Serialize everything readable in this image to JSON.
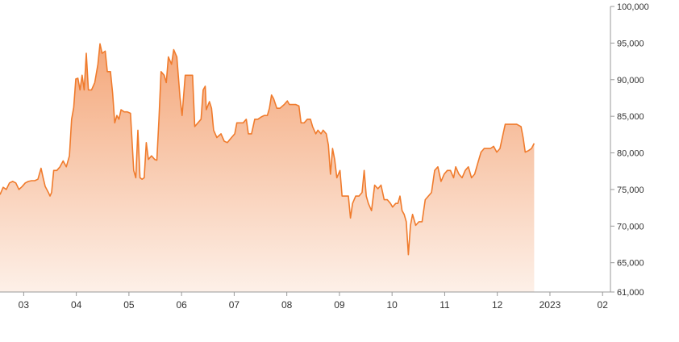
{
  "chart_data": {
    "type": "area",
    "title": "",
    "xlabel": "",
    "ylabel": "",
    "ylim": [
      61000,
      100000
    ],
    "y_ticks": [
      61000,
      65000,
      70000,
      75000,
      80000,
      85000,
      90000,
      95000,
      100000
    ],
    "y_tick_labels": [
      "61,000",
      "65,000",
      "70,000",
      "75,000",
      "80,000",
      "85,000",
      "90,000",
      "95,000",
      "100,000"
    ],
    "x_ticks": [
      {
        "label": "03",
        "x": 0.45
      },
      {
        "label": "04",
        "x": 1.45
      },
      {
        "label": "05",
        "x": 2.45
      },
      {
        "label": "06",
        "x": 3.45
      },
      {
        "label": "07",
        "x": 4.45
      },
      {
        "label": "08",
        "x": 5.45
      },
      {
        "label": "09",
        "x": 6.45
      },
      {
        "label": "10",
        "x": 7.45
      },
      {
        "label": "11",
        "x": 8.45
      },
      {
        "label": "12",
        "x": 9.45
      },
      {
        "label": "2023",
        "x": 10.45
      },
      {
        "label": "02",
        "x": 11.45
      }
    ],
    "x_domain": [
      0,
      11.6
    ],
    "y_axis_position": "right",
    "grid": false,
    "colors": {
      "line": "#f07b2c",
      "fill_top": "#f4a77a",
      "fill_bottom": "#fdf0e8",
      "axis": "#999999",
      "text": "#333333"
    },
    "series": [
      {
        "values": [
          [
            0.0,
            74300
          ],
          [
            0.06,
            75300
          ],
          [
            0.12,
            75000
          ],
          [
            0.18,
            75900
          ],
          [
            0.24,
            76100
          ],
          [
            0.3,
            75900
          ],
          [
            0.36,
            75000
          ],
          [
            0.42,
            75400
          ],
          [
            0.48,
            75900
          ],
          [
            0.54,
            76100
          ],
          [
            0.6,
            76200
          ],
          [
            0.66,
            76200
          ],
          [
            0.72,
            76400
          ],
          [
            0.78,
            77900
          ],
          [
            0.82,
            76600
          ],
          [
            0.86,
            75400
          ],
          [
            0.92,
            74600
          ],
          [
            0.95,
            74100
          ],
          [
            0.98,
            74600
          ],
          [
            1.02,
            77600
          ],
          [
            1.08,
            77600
          ],
          [
            1.14,
            78100
          ],
          [
            1.2,
            78900
          ],
          [
            1.26,
            78100
          ],
          [
            1.32,
            79600
          ],
          [
            1.36,
            84600
          ],
          [
            1.4,
            86200
          ],
          [
            1.44,
            90100
          ],
          [
            1.48,
            90200
          ],
          [
            1.52,
            88600
          ],
          [
            1.56,
            90600
          ],
          [
            1.6,
            88600
          ],
          [
            1.64,
            93600
          ],
          [
            1.68,
            88600
          ],
          [
            1.74,
            88600
          ],
          [
            1.8,
            89600
          ],
          [
            1.86,
            92100
          ],
          [
            1.9,
            94900
          ],
          [
            1.94,
            93600
          ],
          [
            2.0,
            93900
          ],
          [
            2.04,
            91100
          ],
          [
            2.1,
            91100
          ],
          [
            2.14,
            88100
          ],
          [
            2.18,
            84100
          ],
          [
            2.22,
            85100
          ],
          [
            2.26,
            84600
          ],
          [
            2.3,
            85900
          ],
          [
            2.36,
            85600
          ],
          [
            2.42,
            85600
          ],
          [
            2.48,
            85400
          ],
          [
            2.54,
            77600
          ],
          [
            2.58,
            76600
          ],
          [
            2.62,
            83100
          ],
          [
            2.66,
            76600
          ],
          [
            2.7,
            76400
          ],
          [
            2.74,
            76600
          ],
          [
            2.78,
            81400
          ],
          [
            2.82,
            79100
          ],
          [
            2.88,
            79600
          ],
          [
            2.94,
            79100
          ],
          [
            2.98,
            79000
          ],
          [
            3.02,
            84600
          ],
          [
            3.06,
            91100
          ],
          [
            3.12,
            90600
          ],
          [
            3.16,
            89600
          ],
          [
            3.2,
            93100
          ],
          [
            3.26,
            92100
          ],
          [
            3.3,
            94100
          ],
          [
            3.36,
            93100
          ],
          [
            3.42,
            87600
          ],
          [
            3.46,
            85100
          ],
          [
            3.52,
            90600
          ],
          [
            3.6,
            90600
          ],
          [
            3.66,
            90600
          ],
          [
            3.7,
            83600
          ],
          [
            3.76,
            84100
          ],
          [
            3.82,
            84600
          ],
          [
            3.86,
            88600
          ],
          [
            3.9,
            89100
          ],
          [
            3.92,
            85900
          ],
          [
            3.98,
            87000
          ],
          [
            4.02,
            86100
          ],
          [
            4.06,
            83100
          ],
          [
            4.12,
            82100
          ],
          [
            4.2,
            82600
          ],
          [
            4.26,
            81600
          ],
          [
            4.32,
            81400
          ],
          [
            4.4,
            82100
          ],
          [
            4.46,
            82600
          ],
          [
            4.5,
            84100
          ],
          [
            4.56,
            84100
          ],
          [
            4.62,
            84100
          ],
          [
            4.68,
            84600
          ],
          [
            4.72,
            82600
          ],
          [
            4.78,
            82600
          ],
          [
            4.84,
            84600
          ],
          [
            4.9,
            84600
          ],
          [
            4.96,
            84900
          ],
          [
            5.02,
            85100
          ],
          [
            5.08,
            85100
          ],
          [
            5.12,
            86100
          ],
          [
            5.16,
            87900
          ],
          [
            5.2,
            87400
          ],
          [
            5.26,
            86100
          ],
          [
            5.32,
            86100
          ],
          [
            5.4,
            86600
          ],
          [
            5.46,
            87100
          ],
          [
            5.5,
            86600
          ],
          [
            5.56,
            86600
          ],
          [
            5.62,
            86600
          ],
          [
            5.68,
            86400
          ],
          [
            5.72,
            84100
          ],
          [
            5.78,
            84100
          ],
          [
            5.84,
            84600
          ],
          [
            5.9,
            84600
          ],
          [
            5.94,
            83600
          ],
          [
            6.0,
            82600
          ],
          [
            6.04,
            83100
          ],
          [
            6.1,
            82600
          ],
          [
            6.14,
            83100
          ],
          [
            6.2,
            82600
          ],
          [
            6.24,
            81100
          ],
          [
            6.28,
            77100
          ],
          [
            6.32,
            80600
          ],
          [
            6.36,
            79100
          ],
          [
            6.4,
            76600
          ],
          [
            6.46,
            77600
          ],
          [
            6.5,
            74100
          ],
          [
            6.56,
            74100
          ],
          [
            6.62,
            74100
          ],
          [
            6.66,
            71100
          ],
          [
            6.7,
            73100
          ],
          [
            6.76,
            74100
          ],
          [
            6.82,
            74100
          ],
          [
            6.88,
            74600
          ],
          [
            6.92,
            77600
          ],
          [
            6.96,
            74100
          ],
          [
            7.0,
            73100
          ],
          [
            7.06,
            72100
          ],
          [
            7.12,
            75600
          ],
          [
            7.18,
            75100
          ],
          [
            7.24,
            75600
          ],
          [
            7.3,
            73600
          ],
          [
            7.36,
            73600
          ],
          [
            7.42,
            73100
          ],
          [
            7.46,
            72600
          ],
          [
            7.52,
            73100
          ],
          [
            7.56,
            73100
          ],
          [
            7.6,
            74100
          ],
          [
            7.64,
            72100
          ],
          [
            7.68,
            71600
          ],
          [
            7.72,
            70600
          ],
          [
            7.76,
            66100
          ],
          [
            7.8,
            70100
          ],
          [
            7.84,
            71600
          ],
          [
            7.9,
            70100
          ],
          [
            7.96,
            70600
          ],
          [
            8.02,
            70600
          ],
          [
            8.08,
            73600
          ],
          [
            8.14,
            74100
          ],
          [
            8.2,
            74600
          ],
          [
            8.26,
            77600
          ],
          [
            8.32,
            78100
          ],
          [
            8.38,
            76100
          ],
          [
            8.44,
            77100
          ],
          [
            8.5,
            77600
          ],
          [
            8.56,
            77600
          ],
          [
            8.62,
            76600
          ],
          [
            8.66,
            78100
          ],
          [
            8.72,
            77100
          ],
          [
            8.78,
            76600
          ],
          [
            8.84,
            77600
          ],
          [
            8.9,
            78100
          ],
          [
            8.96,
            76600
          ],
          [
            9.02,
            77100
          ],
          [
            9.08,
            78600
          ],
          [
            9.14,
            80100
          ],
          [
            9.2,
            80600
          ],
          [
            9.26,
            80600
          ],
          [
            9.32,
            80600
          ],
          [
            9.38,
            80900
          ],
          [
            9.44,
            80100
          ],
          [
            9.5,
            80600
          ],
          [
            9.56,
            82600
          ],
          [
            9.6,
            83900
          ],
          [
            9.66,
            83900
          ],
          [
            9.74,
            83900
          ],
          [
            9.82,
            83900
          ],
          [
            9.9,
            83600
          ],
          [
            9.94,
            82100
          ],
          [
            9.98,
            80100
          ],
          [
            10.04,
            80300
          ],
          [
            10.1,
            80600
          ],
          [
            10.15,
            81300
          ]
        ]
      }
    ]
  }
}
